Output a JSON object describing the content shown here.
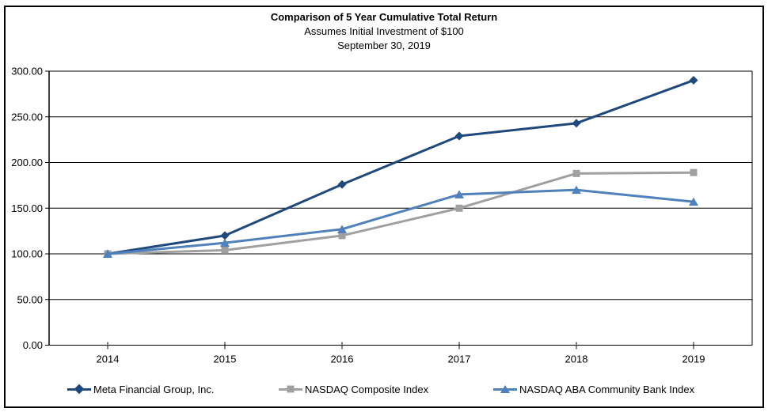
{
  "chart_data": {
    "type": "line",
    "title": "Comparison of 5 Year Cumulative Total Return",
    "subtitle": "Assumes Initial Investment of $100",
    "date_line": "September 30, 2019",
    "categories": [
      "2014",
      "2015",
      "2016",
      "2017",
      "2018",
      "2019"
    ],
    "series": [
      {
        "name": "Meta Financial Group, Inc.",
        "color": "#1F497D",
        "marker": "diamond",
        "values": [
          100.0,
          120.0,
          176.0,
          229.0,
          243.0,
          290.0
        ]
      },
      {
        "name": "NASDAQ Composite Index",
        "color": "#A0A0A0",
        "marker": "square",
        "values": [
          100.0,
          104.0,
          120.0,
          150.0,
          188.0,
          189.0
        ]
      },
      {
        "name": "NASDAQ ABA Community Bank Index",
        "color": "#4F81BD",
        "marker": "triangle",
        "values": [
          100.0,
          112.0,
          127.0,
          165.0,
          170.0,
          157.0
        ]
      }
    ],
    "ylim": [
      0,
      300
    ],
    "ytick_step": 50,
    "ytick_decimals": 2,
    "grid": "horizontal",
    "gridline_color": "#000000",
    "axis_color": "#000000",
    "legend_position": "bottom",
    "background_color": "#FFFFFF",
    "border_color": "#000000"
  }
}
